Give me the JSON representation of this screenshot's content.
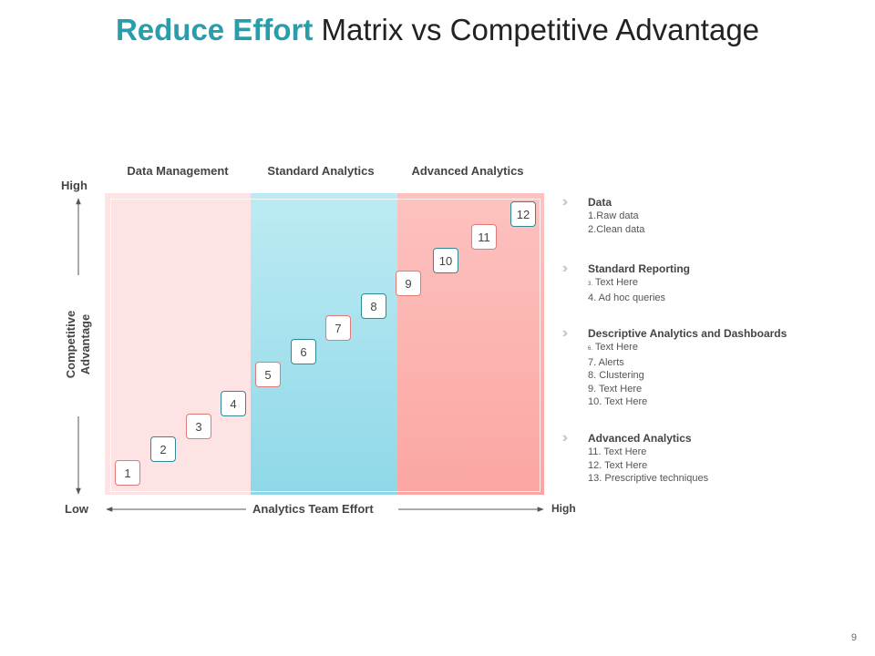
{
  "title": {
    "accent": "Reduce Effort",
    "rest": "Matrix vs Competitive Advantage"
  },
  "columns": [
    "Data Management",
    "Standard Analytics",
    "Advanced Analytics"
  ],
  "axes": {
    "y_high": "High",
    "y_title_line1": "Competitive",
    "y_title_line2": "Advantage",
    "x_low": "Low",
    "x_title": "Analytics  Team Effort",
    "x_high": "High"
  },
  "steps": [
    "1",
    "2",
    "3",
    "4",
    "5",
    "6",
    "7",
    "8",
    "9",
    "10",
    "11",
    "12"
  ],
  "legend": [
    {
      "title": "Data",
      "items": [
        {
          "num": "1.",
          "text": "Raw data"
        },
        {
          "num": "2.",
          "text": "Clean data"
        }
      ]
    },
    {
      "title": "Standard Reporting",
      "items": [
        {
          "num": "3.",
          "text": " Text Here",
          "tiny": true
        },
        {
          "num": "4.",
          "text": " Ad hoc queries"
        }
      ]
    },
    {
      "title": "Descriptive Analytics  and Dashboards",
      "items": [
        {
          "num": "6.",
          "text": " Text Here",
          "tiny": true
        },
        {
          "num": "7.",
          "text": " Alerts"
        },
        {
          "num": "8.",
          "text": " Clustering"
        },
        {
          "num": "9.",
          "text": " Text Here"
        },
        {
          "num": "10.",
          "text": " Text Here"
        }
      ]
    },
    {
      "title": "Advanced Analytics",
      "items": [
        {
          "num": "11.",
          "text": "  Text Here"
        },
        {
          "num": "12.",
          "text": "  Text Here"
        },
        {
          "num": "13.",
          "text": "  Prescriptive techniques"
        }
      ]
    }
  ],
  "page_number": "9",
  "colors": {
    "accent": "#2a9dad",
    "step_red": "#e07a78",
    "step_teal": "#2e8a96",
    "pink": "#fde3e3",
    "teal": "#8fd8e8",
    "salmon": "#fba6a2"
  }
}
